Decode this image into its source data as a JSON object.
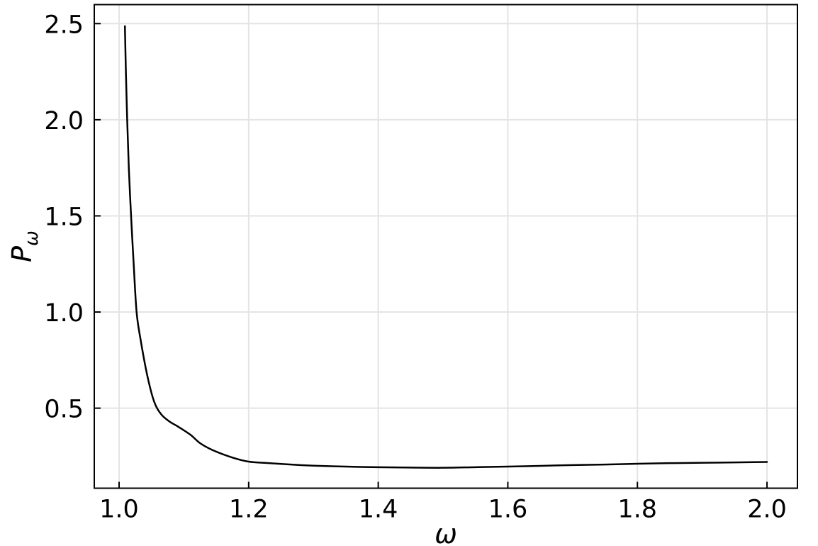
{
  "figure": {
    "background_color": "#ffffff",
    "frame_color": "#000000",
    "grid_color": "#e4e4e4",
    "tick_color": "#000000",
    "text_color": "#000000"
  },
  "chart_data": {
    "type": "line",
    "title": "",
    "xlabel": "ω",
    "ylabel": "P_ω",
    "ylabel_base": "P",
    "ylabel_subscript": "ω",
    "xlim": [
      0.9617,
      2.047
    ],
    "ylim": [
      0.0837,
      2.5988
    ],
    "x_ticks": [
      1.0,
      1.2,
      1.4,
      1.6,
      1.8,
      2.0
    ],
    "x_tick_labels": [
      "1.0",
      "1.2",
      "1.4",
      "1.6",
      "1.8",
      "2.0"
    ],
    "y_ticks": [
      0.5,
      1.0,
      1.5,
      2.0,
      2.5
    ],
    "y_tick_labels": [
      "0.5",
      "1.0",
      "1.5",
      "2.0",
      "2.5"
    ],
    "grid": true,
    "legend_position": "none",
    "series": [
      {
        "name": "P_omega",
        "color": "#000000",
        "line_width": 2.5,
        "points": [
          [
            1.009,
            2.487
          ],
          [
            1.0105,
            2.25
          ],
          [
            1.0125,
            2.0
          ],
          [
            1.015,
            1.75
          ],
          [
            1.0185,
            1.5
          ],
          [
            1.0225,
            1.25
          ],
          [
            1.027,
            1.0
          ],
          [
            1.033,
            0.86
          ],
          [
            1.0435,
            0.67
          ],
          [
            1.054,
            0.535
          ],
          [
            1.065,
            0.468
          ],
          [
            1.078,
            0.43
          ],
          [
            1.09,
            0.406
          ],
          [
            1.11,
            0.362
          ],
          [
            1.125,
            0.318
          ],
          [
            1.145,
            0.281
          ],
          [
            1.175,
            0.243
          ],
          [
            1.2,
            0.222
          ],
          [
            1.232,
            0.214
          ],
          [
            1.27,
            0.206
          ],
          [
            1.3,
            0.201
          ],
          [
            1.35,
            0.196
          ],
          [
            1.4,
            0.193
          ],
          [
            1.45,
            0.191
          ],
          [
            1.5,
            0.19
          ],
          [
            1.55,
            0.193
          ],
          [
            1.6,
            0.196
          ],
          [
            1.65,
            0.2
          ],
          [
            1.7,
            0.204
          ],
          [
            1.75,
            0.207
          ],
          [
            1.8,
            0.211
          ],
          [
            1.85,
            0.214
          ],
          [
            1.9,
            0.216
          ],
          [
            1.95,
            0.218
          ],
          [
            2.0,
            0.22
          ]
        ]
      }
    ]
  }
}
